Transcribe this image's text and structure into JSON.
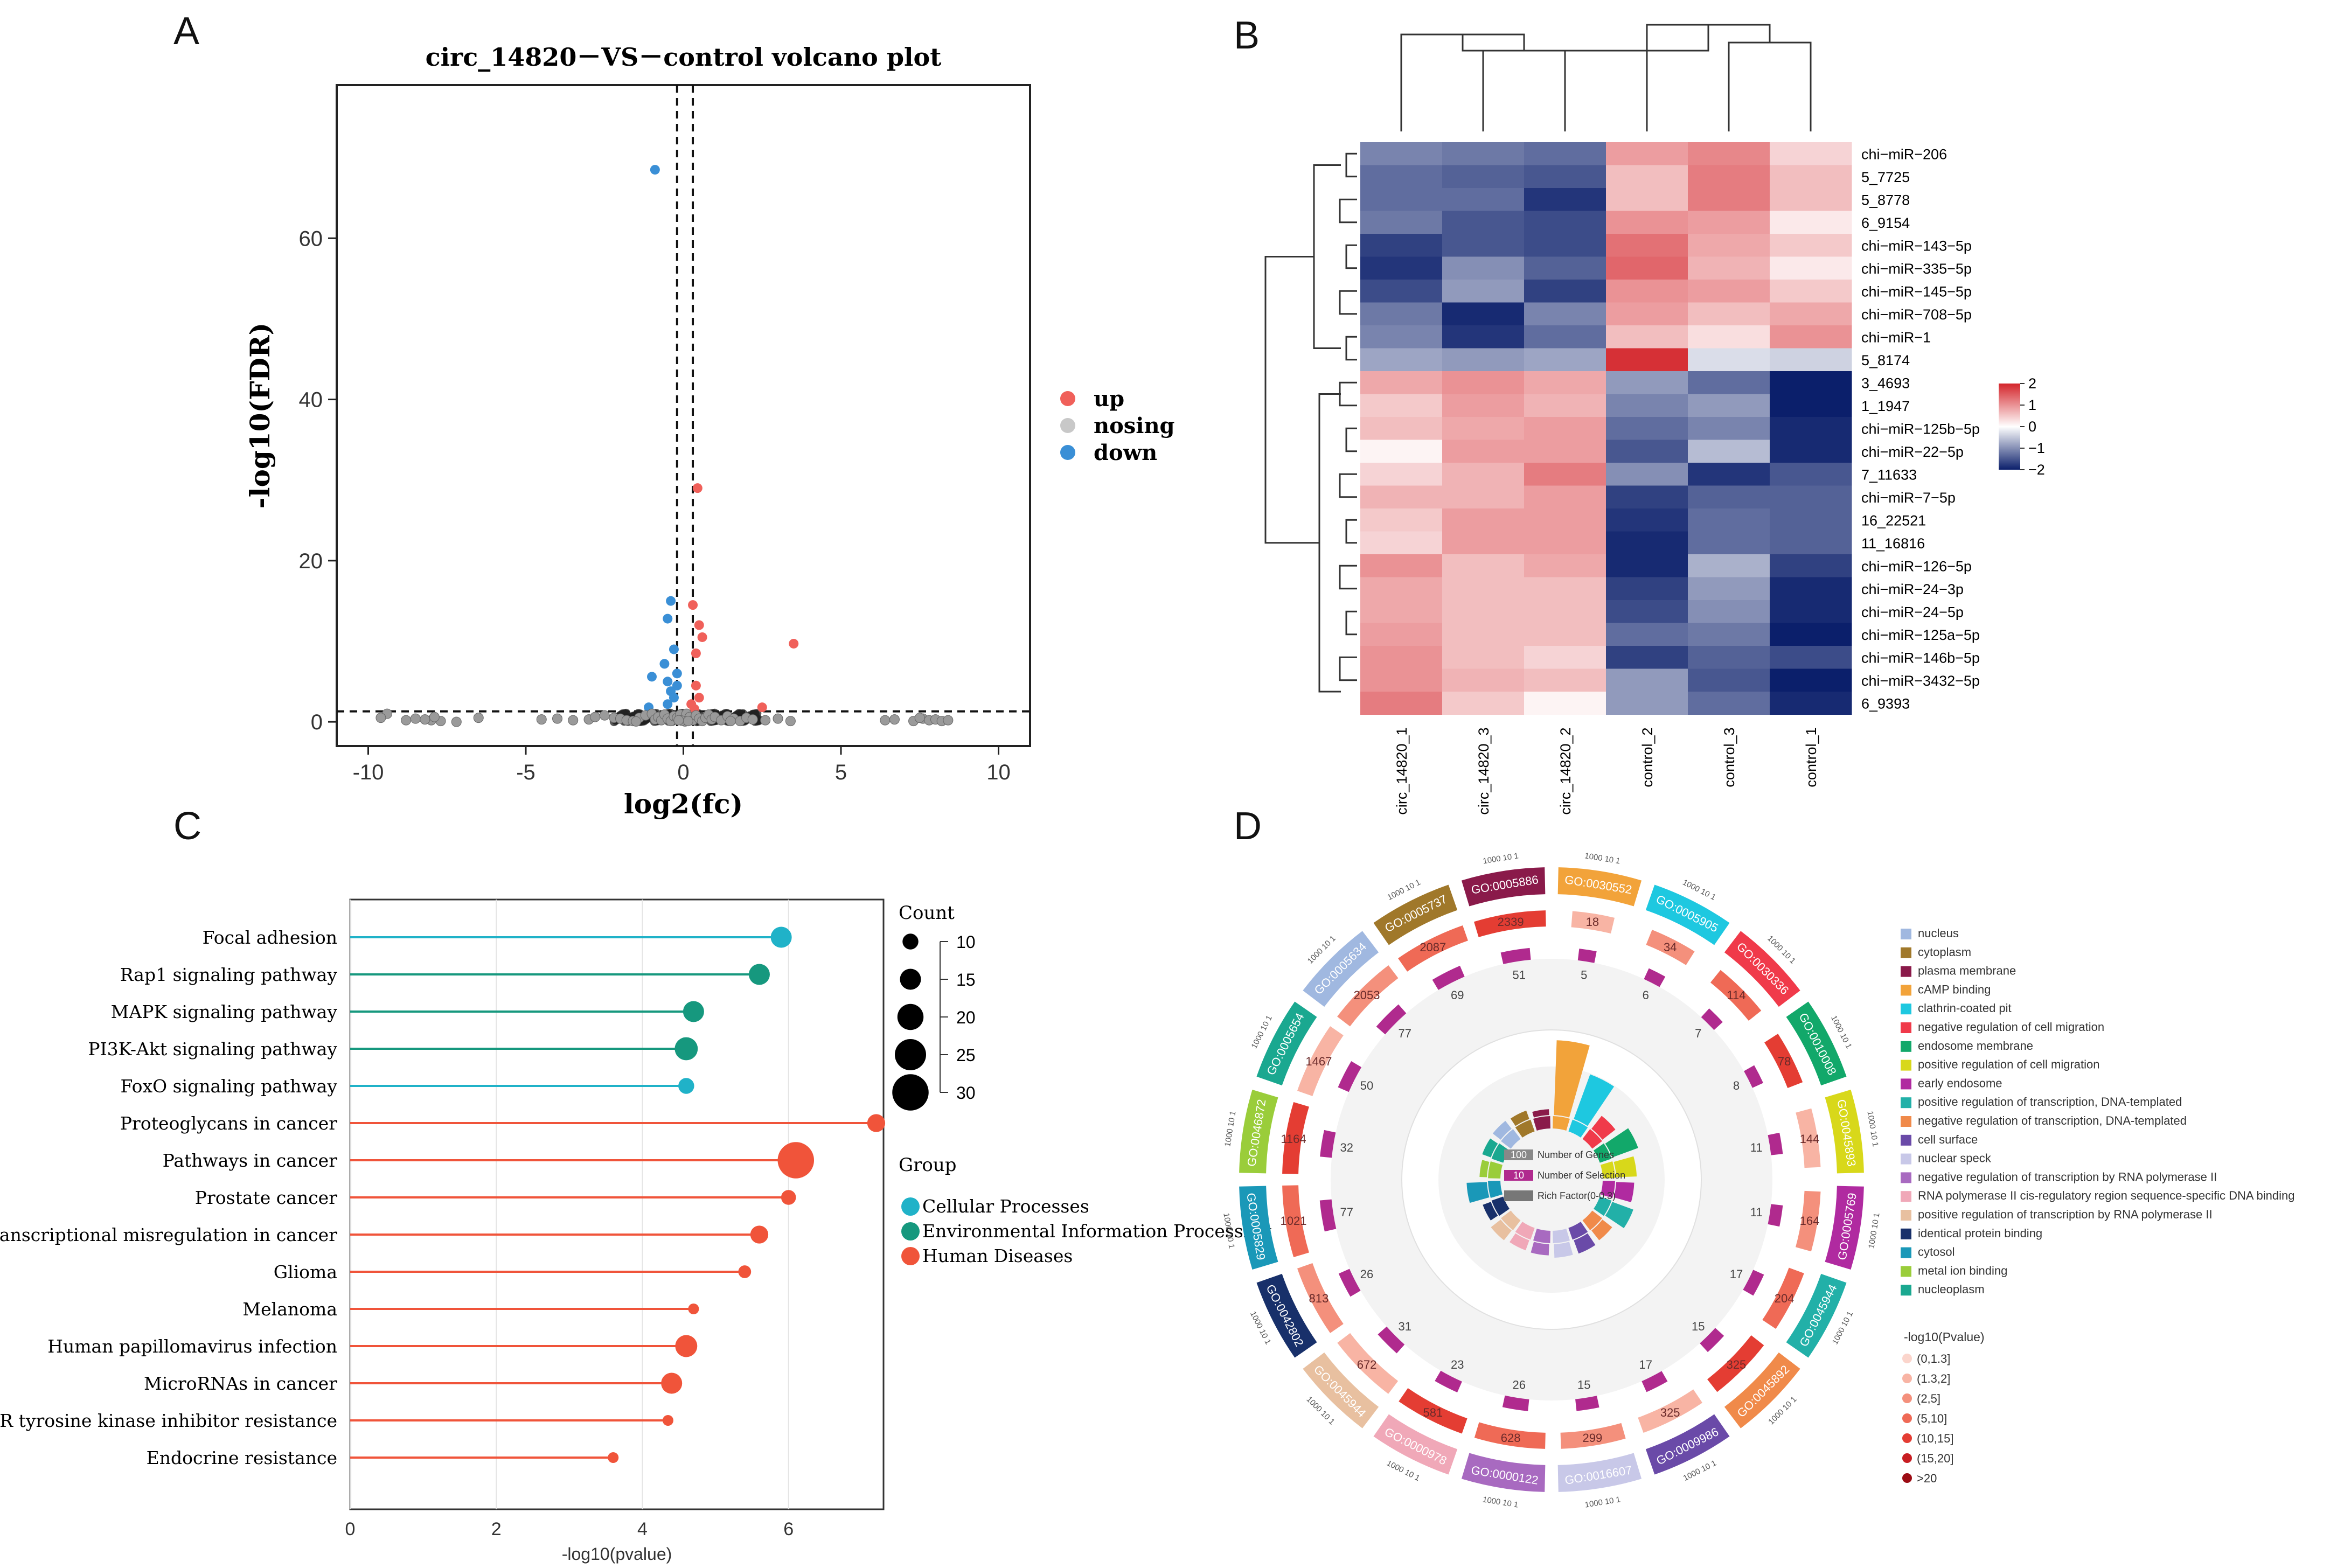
{
  "panels": {
    "a": "A",
    "b": "B",
    "c": "C",
    "d": "D"
  },
  "colors": {
    "up": "#f0605a",
    "nosing": "#c8c8c8",
    "down": "#3a8fd6",
    "cellular": "#20b2c8",
    "environmental": "#16987e",
    "disease": "#f0543a",
    "hm_low": "#0b1f6b",
    "hm_mid": "#ffffff",
    "hm_high": "#d4252b"
  },
  "chart_data": [
    {
      "type": "scatter",
      "title": "circ_14820－VS－control volcano plot",
      "xlabel": "log2(fc)",
      "ylabel": "-log10(FDR)",
      "xlim": [
        -11,
        11
      ],
      "ylim": [
        -3,
        79
      ],
      "xticks": [
        -10,
        -5,
        0,
        5,
        10
      ],
      "yticks": [
        0,
        20,
        40,
        60
      ],
      "vlines": [
        -0.2,
        0.3
      ],
      "hline": 1.3,
      "legend": [
        "up",
        "nosing",
        "down"
      ],
      "series": [
        {
          "name": "up",
          "points": [
            [
              0.45,
              29
            ],
            [
              0.3,
              14.5
            ],
            [
              0.5,
              12
            ],
            [
              0.6,
              10.5
            ],
            [
              3.5,
              9.7
            ],
            [
              0.4,
              8.5
            ],
            [
              0.4,
              4.5
            ],
            [
              0.5,
              3
            ],
            [
              0.25,
              2.2
            ],
            [
              2.5,
              1.8
            ],
            [
              0.35,
              1.6
            ]
          ]
        },
        {
          "name": "down",
          "points": [
            [
              -0.9,
              68.5
            ],
            [
              -0.4,
              15
            ],
            [
              -0.5,
              12.8
            ],
            [
              -0.3,
              9
            ],
            [
              -0.6,
              7.2
            ],
            [
              -0.2,
              6
            ],
            [
              -1,
              5.6
            ],
            [
              -0.5,
              5
            ],
            [
              -0.2,
              4.5
            ],
            [
              -0.4,
              3.8
            ],
            [
              -0.3,
              3
            ],
            [
              -1.1,
              1.8
            ],
            [
              -0.5,
              2.2
            ]
          ]
        },
        {
          "name": "nosing",
          "points": [
            [
              -9.4,
              1
            ],
            [
              -8.5,
              0.4
            ],
            [
              -8,
              0.2
            ],
            [
              -7.7,
              0.1
            ],
            [
              -7.2,
              0
            ],
            [
              -6.5,
              0.5
            ],
            [
              -4.5,
              0.3
            ],
            [
              -4,
              0.4
            ],
            [
              -3.5,
              0.2
            ],
            [
              -3,
              0.3
            ],
            [
              -2.8,
              0.6
            ],
            [
              -2.5,
              0.8
            ],
            [
              -2.2,
              0.5
            ],
            [
              -2,
              0.4
            ],
            [
              -1.8,
              0.2
            ],
            [
              -1.6,
              0.1
            ],
            [
              -1.4,
              0.5
            ],
            [
              -1.2,
              0.8
            ],
            [
              -1,
              1
            ],
            [
              -0.9,
              0.3
            ],
            [
              -0.8,
              0.6
            ],
            [
              -0.7,
              0.2
            ],
            [
              -0.6,
              0.9
            ],
            [
              -0.5,
              0.4
            ],
            [
              -0.4,
              0.1
            ],
            [
              -0.3,
              0.7
            ],
            [
              -0.2,
              0.5
            ],
            [
              -0.1,
              0.9
            ],
            [
              0,
              0.3
            ],
            [
              0.1,
              1
            ],
            [
              0.2,
              0.6
            ],
            [
              0.3,
              0.2
            ],
            [
              0.4,
              0.8
            ],
            [
              0.5,
              0.4
            ],
            [
              0.6,
              0.1
            ],
            [
              0.7,
              0.5
            ],
            [
              0.8,
              0.9
            ],
            [
              0.9,
              0.3
            ],
            [
              1,
              0.6
            ],
            [
              1.2,
              0.2
            ],
            [
              1.4,
              0.7
            ],
            [
              1.6,
              0.4
            ],
            [
              1.8,
              0.1
            ],
            [
              2,
              0.5
            ],
            [
              2.2,
              0.3
            ],
            [
              2.6,
              0.2
            ],
            [
              3,
              0.4
            ],
            [
              3.4,
              0.1
            ],
            [
              6.4,
              0.2
            ],
            [
              6.7,
              0.3
            ],
            [
              7.3,
              0.1
            ],
            [
              7.6,
              0.4
            ],
            [
              7.8,
              0.2
            ],
            [
              8,
              0.3
            ],
            [
              8.2,
              0.1
            ],
            [
              -9.6,
              0.5
            ],
            [
              -8.8,
              0.2
            ],
            [
              -8.2,
              0.3
            ],
            [
              -7.9,
              0.6
            ],
            [
              7.5,
              0.5
            ],
            [
              8.4,
              0.2
            ],
            [
              0.05,
              0.05
            ],
            [
              -0.05,
              0.15
            ],
            [
              0.15,
              0.1
            ],
            [
              -0.15,
              0.2
            ],
            [
              -1.5,
              0.05
            ],
            [
              1.5,
              0.1
            ]
          ]
        }
      ]
    },
    {
      "type": "heatmap",
      "columns": [
        "circ_14820_1",
        "circ_14820_3",
        "circ_14820_2",
        "control_2",
        "control_3",
        "control_1"
      ],
      "rows": [
        "chi−miR−206",
        "5_7725",
        "5_8778",
        "6_9154",
        "chi−miR−143−5p",
        "chi−miR−335−5p",
        "chi−miR−145−5p",
        "chi−miR−708−5p",
        "chi−miR−1",
        "5_8174",
        "3_4693",
        "1_1947",
        "chi−miR−125b−5p",
        "chi−miR−22−5p",
        "7_11633",
        "chi−miR−7−5p",
        "16_22521",
        "11_16816",
        "chi−miR−126−5p",
        "chi−miR−24−3p",
        "chi−miR−24−5p",
        "chi−miR−125a−5p",
        "chi−miR−146b−5p",
        "chi−miR−3432−5p",
        "6_9393"
      ],
      "values": [
        [
          -1.1,
          -1.2,
          -1.3,
          0.9,
          1.1,
          0.4
        ],
        [
          -1.3,
          -1.4,
          -1.5,
          0.6,
          1.2,
          0.6
        ],
        [
          -1.3,
          -1.3,
          -1.8,
          0.6,
          1.2,
          0.6
        ],
        [
          -1.2,
          -1.5,
          -1.6,
          1.0,
          0.9,
          0.2
        ],
        [
          -1.7,
          -1.5,
          -1.6,
          1.3,
          0.8,
          0.5
        ],
        [
          -1.8,
          -1.0,
          -1.4,
          1.4,
          0.7,
          0.2
        ],
        [
          -1.6,
          -0.9,
          -1.7,
          1.0,
          0.9,
          0.5
        ],
        [
          -1.2,
          -1.9,
          -1.1,
          0.9,
          0.6,
          0.8
        ],
        [
          -1.1,
          -1.8,
          -1.3,
          0.6,
          0.3,
          1.0
        ],
        [
          -0.8,
          -0.9,
          -0.8,
          1.9,
          -0.3,
          -0.4
        ],
        [
          0.8,
          1.0,
          0.8,
          -0.9,
          -1.3,
          -2.0
        ],
        [
          0.5,
          0.9,
          0.7,
          -1.1,
          -0.9,
          -2.0
        ],
        [
          0.6,
          0.8,
          0.9,
          -1.3,
          -1.1,
          -1.9
        ],
        [
          0.1,
          0.9,
          0.9,
          -1.5,
          -0.6,
          -1.9
        ],
        [
          0.4,
          0.7,
          1.2,
          -1.0,
          -1.8,
          -1.5
        ],
        [
          0.7,
          0.7,
          0.9,
          -1.7,
          -1.4,
          -1.4
        ],
        [
          0.5,
          0.9,
          0.9,
          -1.8,
          -1.3,
          -1.4
        ],
        [
          0.4,
          0.9,
          0.9,
          -1.9,
          -1.3,
          -1.4
        ],
        [
          1.0,
          0.6,
          0.8,
          -1.9,
          -0.7,
          -1.7
        ],
        [
          0.8,
          0.6,
          0.6,
          -1.7,
          -0.9,
          -1.9
        ],
        [
          0.8,
          0.6,
          0.6,
          -1.6,
          -1.0,
          -1.9
        ],
        [
          0.9,
          0.6,
          0.6,
          -1.3,
          -1.2,
          -2.1
        ],
        [
          1.0,
          0.6,
          0.4,
          -1.7,
          -1.4,
          -1.6
        ],
        [
          1.0,
          0.7,
          0.6,
          -0.9,
          -1.5,
          -2.0
        ],
        [
          1.2,
          0.5,
          0.1,
          -0.9,
          -1.3,
          -1.9
        ]
      ],
      "legend_ticks": [
        "2",
        "1",
        "0",
        "−1",
        "−2"
      ],
      "legend_values": [
        2,
        1,
        0,
        -1,
        -2
      ]
    },
    {
      "type": "scatter",
      "subtype": "lollipop",
      "xlabel": "-log10(pvalue)",
      "xlim": [
        0,
        7.3
      ],
      "xticks": [
        "0",
        "2",
        "4",
        "6"
      ],
      "xtick_values": [
        0,
        2,
        4,
        6
      ],
      "categories": [
        "Focal adhesion",
        "Rap1 signaling pathway",
        "MAPK signaling pathway",
        "PI3K-Akt signaling pathway",
        "FoxO signaling pathway",
        "Proteoglycans in cancer",
        "Pathways in cancer",
        "Prostate cancer",
        "Transcriptional misregulation in cancer",
        "Glioma",
        "Melanoma",
        "Human papillomavirus infection",
        "MicroRNAs in cancer",
        "EGFR tyrosine kinase inhibitor resistance",
        "Endocrine resistance"
      ],
      "values": [
        5.9,
        5.6,
        4.7,
        4.6,
        4.6,
        7.2,
        6.1,
        6.0,
        5.6,
        5.4,
        4.7,
        4.6,
        4.4,
        4.35,
        3.6
      ],
      "counts": [
        15,
        15,
        15,
        17,
        10,
        12,
        30,
        9,
        12,
        7,
        5,
        16,
        15,
        5,
        5
      ],
      "groups": [
        "Cellular Processes",
        "Environmental Information Processing",
        "Environmental Information Processing",
        "Environmental Information Processing",
        "Cellular Processes",
        "Human Diseases",
        "Human Diseases",
        "Human Diseases",
        "Human Diseases",
        "Human Diseases",
        "Human Diseases",
        "Human Diseases",
        "Human Diseases",
        "Human Diseases",
        "Human Diseases"
      ],
      "count_legend_title": "Count",
      "count_legend": [
        10,
        15,
        20,
        25,
        30
      ],
      "group_legend_title": "Group",
      "group_legend": [
        "Cellular Processes",
        "Environmental Information Processing",
        "Human Diseases"
      ]
    },
    {
      "type": "other",
      "subtype": "circular GO enrichment plot",
      "terms": [
        {
          "id": "GO:0030552",
          "total": 18,
          "selection": 5,
          "color": "#f2a33a"
        },
        {
          "id": "GO:0005905",
          "total": 34,
          "selection": 6,
          "color": "#1ec8e0"
        },
        {
          "id": "GO:0030336",
          "total": 114,
          "selection": 7,
          "color": "#f03a4a"
        },
        {
          "id": "GO:0010008",
          "total": 78,
          "selection": 8,
          "color": "#12a86a"
        },
        {
          "id": "GO:0045893",
          "total": 144,
          "selection": 11,
          "color": "#d8d81a"
        },
        {
          "id": "GO:0005769",
          "total": 164,
          "selection": 11,
          "color": "#b02aa0"
        },
        {
          "id": "GO:0045944",
          "total": 204,
          "selection": 17,
          "color": "#22b0a8"
        },
        {
          "id": "GO:0045892",
          "total": 325,
          "selection": 15,
          "color": "#f08a4a"
        },
        {
          "id": "GO:0009986",
          "total": 325,
          "selection": 17,
          "color": "#6a4aa8"
        },
        {
          "id": "GO:0016607",
          "total": 299,
          "selection": 15,
          "color": "#c8c8e8"
        },
        {
          "id": "GO:0000122",
          "total": 628,
          "selection": 26,
          "color": "#a86ac0"
        },
        {
          "id": "GO:0000978",
          "total": 581,
          "selection": 23,
          "color": "#f0a8b8"
        },
        {
          "id": "GO:0045944",
          "total": 672,
          "selection": 31,
          "color": "#e8c0a0"
        },
        {
          "id": "GO:0042802",
          "total": 813,
          "selection": 26,
          "color": "#18306a"
        },
        {
          "id": "GO:0005829",
          "total": 1021,
          "selection": 77,
          "color": "#1a98b8"
        },
        {
          "id": "GO:0046872",
          "total": 1164,
          "selection": 32,
          "color": "#9acd3a"
        },
        {
          "id": "GO:0005654",
          "total": 1467,
          "selection": 50,
          "color": "#1aa890"
        },
        {
          "id": "GO:0005634",
          "total": 2053,
          "selection": 77,
          "color": "#a0b8e0"
        },
        {
          "id": "GO:0005737",
          "total": 2087,
          "selection": 69,
          "color": "#a0782a"
        },
        {
          "id": "GO:0005886",
          "total": 2339,
          "selection": 51,
          "color": "#8a1a4a"
        }
      ],
      "center_legend": [
        {
          "value": "100",
          "label": "Number of Genes"
        },
        {
          "value": "10",
          "label": "Number of Selection"
        },
        {
          "value": "",
          "label": "Rich Factor(0-0.3)"
        }
      ],
      "term_legend": [
        {
          "name": "nucleus",
          "color": "#a0b8e0"
        },
        {
          "name": "cytoplasm",
          "color": "#a0782a"
        },
        {
          "name": "plasma membrane",
          "color": "#8a1a4a"
        },
        {
          "name": "cAMP binding",
          "color": "#f2a33a"
        },
        {
          "name": "clathrin-coated pit",
          "color": "#1ec8e0"
        },
        {
          "name": "negative regulation of cell migration",
          "color": "#f03a4a"
        },
        {
          "name": "endosome membrane",
          "color": "#12a86a"
        },
        {
          "name": "positive regulation of cell migration",
          "color": "#d8d81a"
        },
        {
          "name": "early endosome",
          "color": "#b02aa0"
        },
        {
          "name": "positive regulation of transcription, DNA-templated",
          "color": "#22b0a8"
        },
        {
          "name": "negative regulation of transcription, DNA-templated",
          "color": "#f08a4a"
        },
        {
          "name": "cell surface",
          "color": "#6a4aa8"
        },
        {
          "name": "nuclear speck",
          "color": "#c8c8e8"
        },
        {
          "name": "negative regulation of transcription by RNA polymerase II",
          "color": "#a86ac0"
        },
        {
          "name": "RNA polymerase II cis-regulatory region sequence-specific DNA binding",
          "color": "#f0a8b8"
        },
        {
          "name": "positive regulation of transcription by RNA polymerase II",
          "color": "#e8c0a0"
        },
        {
          "name": "identical protein binding",
          "color": "#18306a"
        },
        {
          "name": "cytosol",
          "color": "#1a98b8"
        },
        {
          "name": "metal ion binding",
          "color": "#9acd3a"
        },
        {
          "name": "nucleoplasm",
          "color": "#1aa890"
        }
      ],
      "pvalue_legend_title": "-log10(Pvalue)",
      "pvalue_legend": [
        {
          "label": "(0,1.3]",
          "color": "#fbd5cc"
        },
        {
          "label": "(1.3,2]",
          "color": "#f8b4a4"
        },
        {
          "label": "(2,5]",
          "color": "#f4907c"
        },
        {
          "label": "(5,10]",
          "color": "#ef6a56"
        },
        {
          "label": "(10,15]",
          "color": "#e43d33"
        },
        {
          "label": "(15,20]",
          "color": "#c81e22"
        },
        {
          "label": ">20",
          "color": "#9c0c14"
        }
      ],
      "ring_ticks": [
        "1000",
        "10",
        "1"
      ]
    }
  ]
}
